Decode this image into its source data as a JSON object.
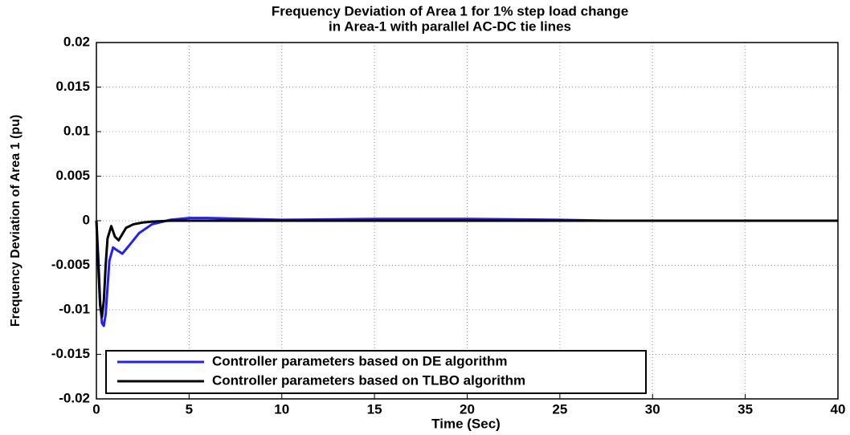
{
  "chart_data": {
    "type": "line",
    "title": [
      "Frequency Deviation of Area 1 for 1% step load change",
      "in Area-1 with parallel AC-DC  tie lines"
    ],
    "x_label": "Time (Sec)",
    "y_label": "Frequency Deviation of Area 1 (pu)",
    "xlim": [
      0,
      40
    ],
    "xticks": [
      0,
      5,
      10,
      15,
      20,
      25,
      30,
      35,
      40
    ],
    "ylim": [
      -0.02,
      0.02
    ],
    "yticks": [
      -0.02,
      -0.015,
      -0.01,
      -0.005,
      0,
      0.005,
      0.01,
      0.015,
      0.02
    ],
    "grid": true,
    "legend": "lower left",
    "series": [
      {
        "name": "Controller parameters based on DE algorithm",
        "color": "#1f1fff",
        "x": [
          0,
          0.1,
          0.2,
          0.3,
          0.4,
          0.5,
          0.6,
          0.7,
          0.9,
          1.1,
          1.4,
          1.8,
          2.3,
          3,
          4,
          5,
          6,
          8,
          10,
          15,
          20,
          25,
          27.5
        ],
        "values": [
          0,
          -0.004,
          -0.009,
          -0.0115,
          -0.0118,
          -0.0105,
          -0.0075,
          -0.0045,
          -0.003,
          -0.0033,
          -0.0037,
          -0.0027,
          -0.0014,
          -0.0004,
          0.0001,
          0.0003,
          0.0003,
          0.0002,
          0.0001,
          0.0002,
          0.0002,
          0.0001,
          0
        ]
      },
      {
        "name": "Controller parameters based on TLBO algorithm",
        "color": "#000000",
        "x": [
          0,
          0.1,
          0.2,
          0.3,
          0.4,
          0.5,
          0.6,
          0.8,
          1.0,
          1.2,
          1.6,
          2.0,
          2.5,
          3,
          4,
          6,
          10,
          20,
          30,
          40
        ],
        "values": [
          0,
          -0.005,
          -0.0095,
          -0.0108,
          -0.009,
          -0.005,
          -0.002,
          -0.0006,
          -0.0018,
          -0.0022,
          -0.0008,
          -0.0004,
          -0.0002,
          -0.0001,
          0,
          0,
          0,
          0,
          0,
          0
        ]
      }
    ]
  }
}
